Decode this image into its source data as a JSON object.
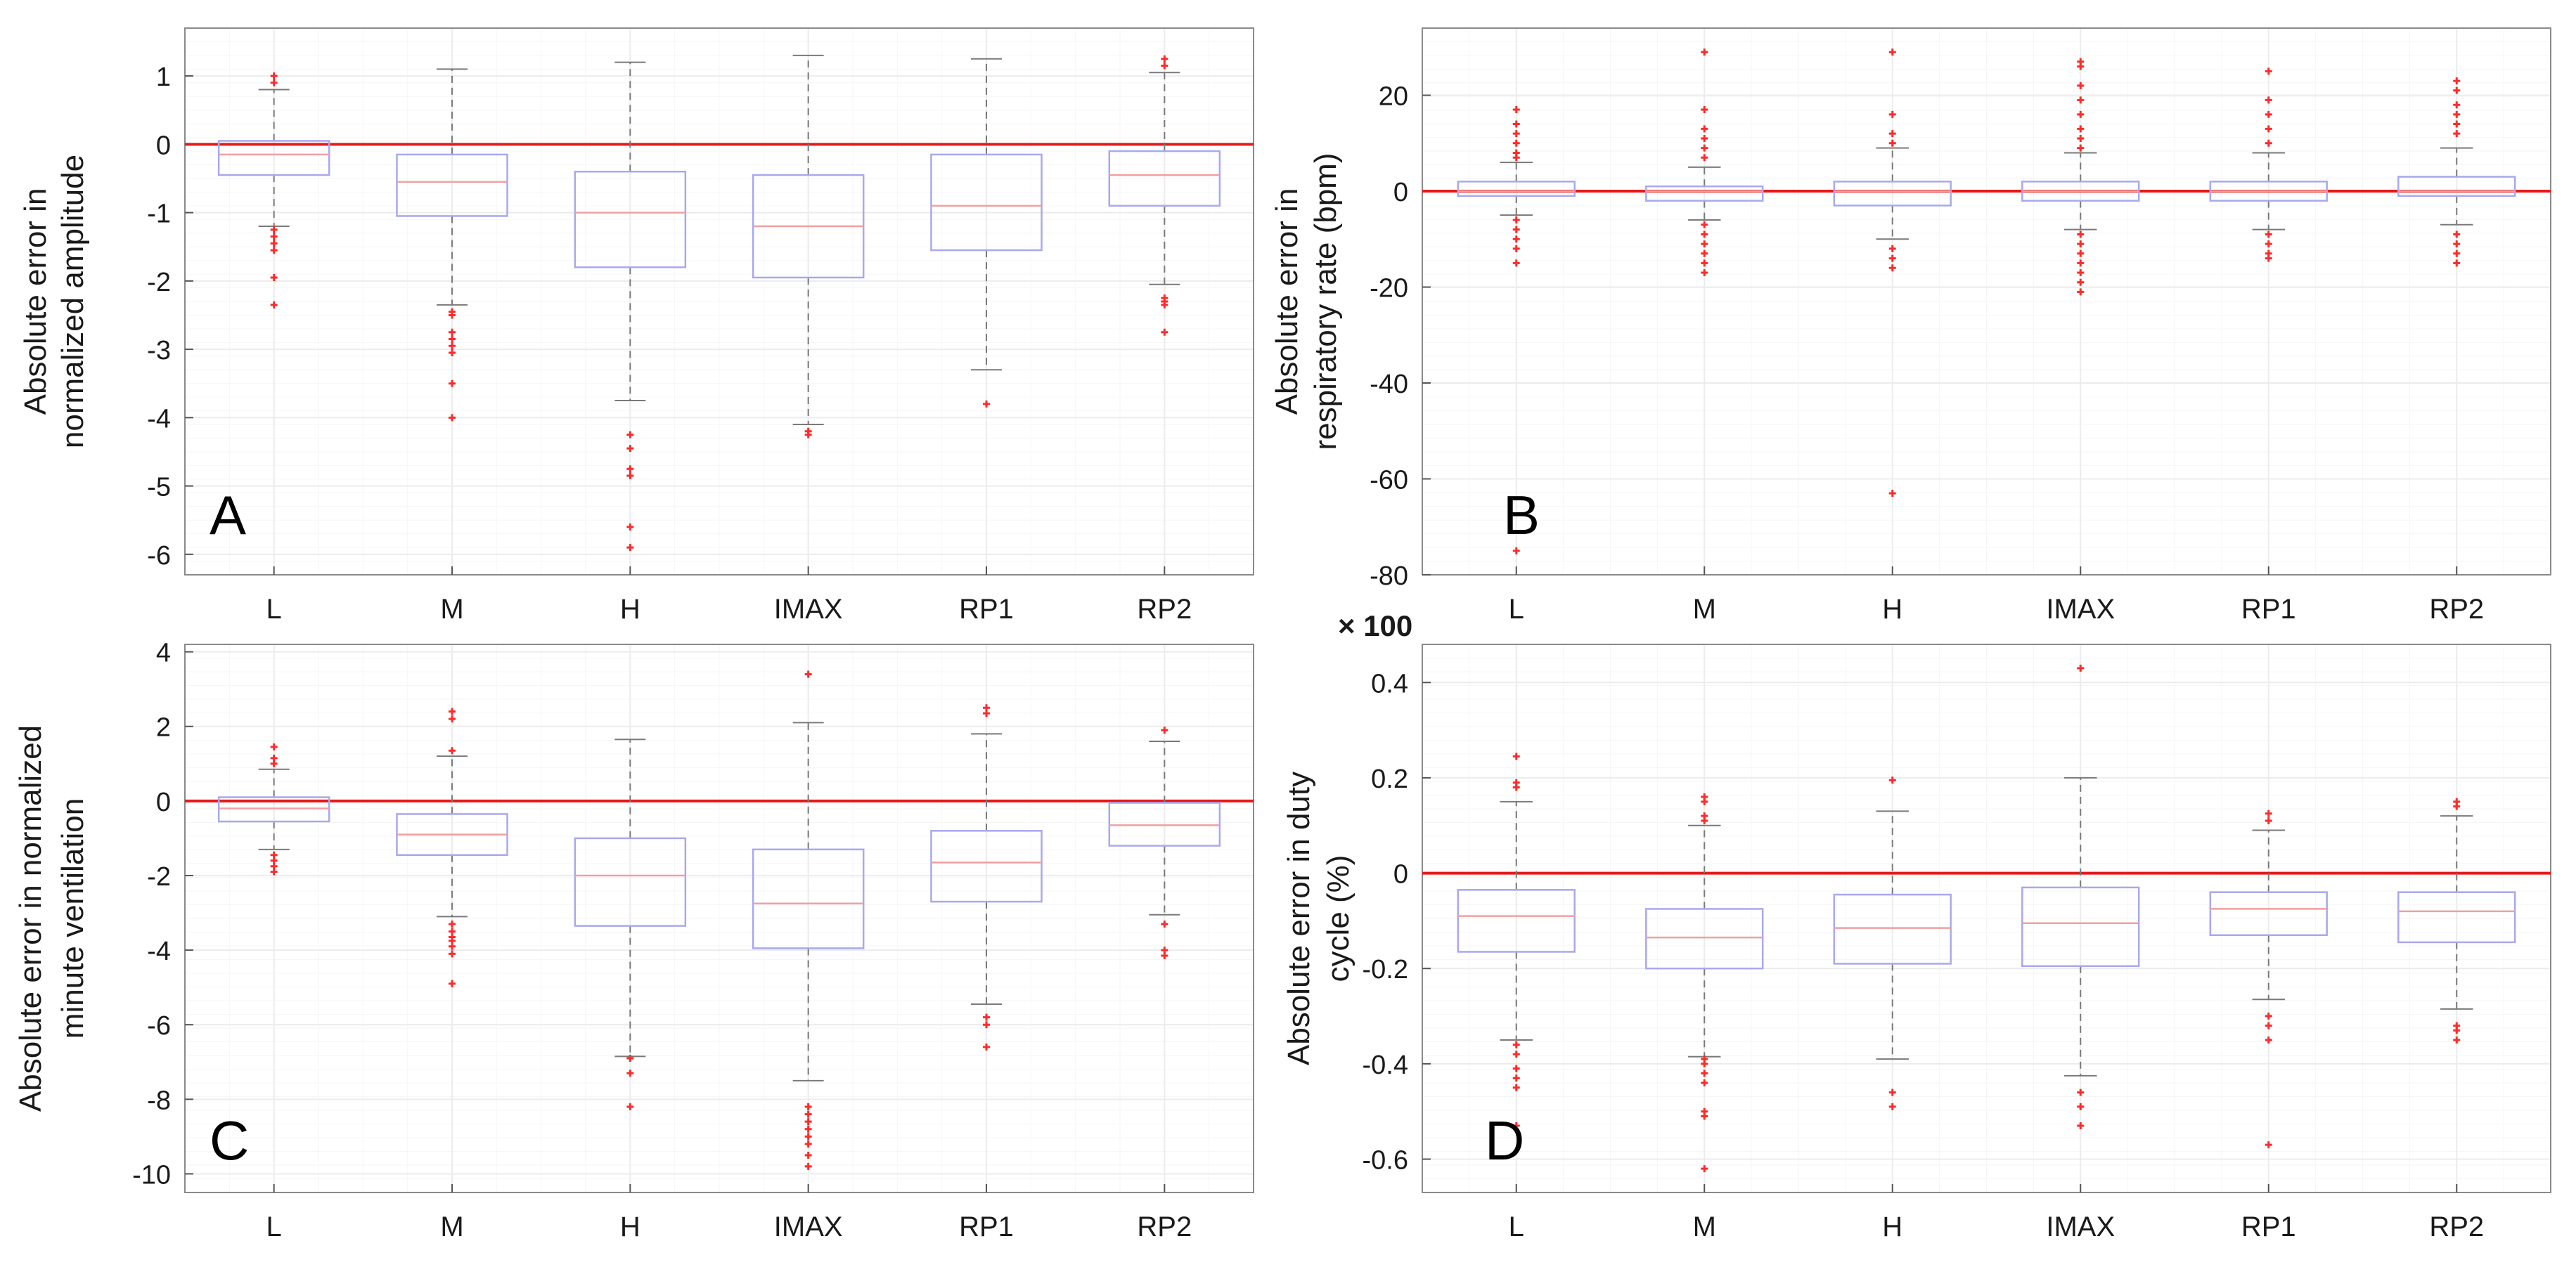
{
  "chart_data": [
    {
      "id": "A",
      "type": "box",
      "panel_label": "A",
      "title": "",
      "xlabel": "",
      "ylabel_lines": [
        "Absolute error in",
        "normalized amplitude"
      ],
      "exponent_label": "",
      "categories": [
        "L",
        "M",
        "H",
        "IMAX",
        "RP1",
        "RP2"
      ],
      "ylim": [
        -6.3,
        1.7
      ],
      "yticks": [
        1,
        0,
        -1,
        -2,
        -3,
        -4,
        -5,
        -6
      ],
      "ytick_labels": [
        "1",
        "0",
        "-1",
        "-2",
        "-3",
        "-4",
        "-5",
        "-6"
      ],
      "reference_line": 0,
      "boxes": [
        {
          "category": "L",
          "whisker_low": -1.2,
          "q1": -0.45,
          "median": -0.15,
          "q3": 0.05,
          "whisker_high": 0.8,
          "outliers": [
            1.0,
            0.9,
            -1.25,
            -1.35,
            -1.45,
            -1.55,
            -1.95,
            -2.35
          ]
        },
        {
          "category": "M",
          "whisker_low": -2.35,
          "q1": -1.05,
          "median": -0.55,
          "q3": -0.15,
          "whisker_high": 1.1,
          "outliers": [
            -2.45,
            -2.5,
            -2.75,
            -2.85,
            -2.95,
            -3.05,
            -3.5,
            -4.0
          ]
        },
        {
          "category": "H",
          "whisker_low": -3.75,
          "q1": -1.8,
          "median": -1.0,
          "q3": -0.4,
          "whisker_high": 1.2,
          "outliers": [
            -4.25,
            -4.45,
            -4.75,
            -4.85,
            -5.6,
            -5.9
          ]
        },
        {
          "category": "IMAX",
          "whisker_low": -4.1,
          "q1": -1.95,
          "median": -1.2,
          "q3": -0.45,
          "whisker_high": 1.3,
          "outliers": [
            -4.2,
            -4.25
          ]
        },
        {
          "category": "RP1",
          "whisker_low": -3.3,
          "q1": -1.55,
          "median": -0.9,
          "q3": -0.15,
          "whisker_high": 1.25,
          "outliers": [
            -3.8
          ]
        },
        {
          "category": "RP2",
          "whisker_low": -2.05,
          "q1": -0.9,
          "median": -0.45,
          "q3": -0.1,
          "whisker_high": 1.05,
          "outliers": [
            1.25,
            1.15,
            -2.25,
            -2.3,
            -2.35,
            -2.75
          ]
        }
      ]
    },
    {
      "id": "B",
      "type": "box",
      "panel_label": "B",
      "title": "",
      "xlabel": "",
      "ylabel_lines": [
        "Absolute error in",
        "respiratory rate (bpm)"
      ],
      "exponent_label": "",
      "categories": [
        "L",
        "M",
        "H",
        "IMAX",
        "RP1",
        "RP2"
      ],
      "ylim": [
        -80,
        34
      ],
      "yticks": [
        20,
        0,
        -20,
        -40,
        -60,
        -80
      ],
      "ytick_labels": [
        "20",
        "0",
        "-20",
        "-40",
        "-60",
        "-80"
      ],
      "reference_line": 0,
      "boxes": [
        {
          "category": "L",
          "whisker_low": -5,
          "q1": -1,
          "median": 0,
          "q3": 2,
          "whisker_high": 6,
          "outliers": [
            17,
            14,
            12,
            10,
            8,
            7,
            -6,
            -8,
            -10,
            -12,
            -15,
            -75
          ]
        },
        {
          "category": "M",
          "whisker_low": -6,
          "q1": -2,
          "median": 0,
          "q3": 1,
          "whisker_high": 5,
          "outliers": [
            29,
            17,
            13,
            11,
            9,
            7,
            -7,
            -9,
            -11,
            -13,
            -15,
            -17
          ]
        },
        {
          "category": "H",
          "whisker_low": -10,
          "q1": -3,
          "median": 0,
          "q3": 2,
          "whisker_high": 9,
          "outliers": [
            29,
            16,
            12,
            10,
            -12,
            -14,
            -16,
            -63
          ]
        },
        {
          "category": "IMAX",
          "whisker_low": -8,
          "q1": -2,
          "median": 0,
          "q3": 2,
          "whisker_high": 8,
          "outliers": [
            27,
            26,
            22,
            19,
            16,
            13,
            11,
            9,
            -9,
            -11,
            -13,
            -15,
            -17,
            -19,
            -21
          ]
        },
        {
          "category": "RP1",
          "whisker_low": -8,
          "q1": -2,
          "median": 0,
          "q3": 2,
          "whisker_high": 8,
          "outliers": [
            25,
            19,
            16,
            13,
            10,
            -9,
            -11,
            -13,
            -14
          ]
        },
        {
          "category": "RP2",
          "whisker_low": -7,
          "q1": -1,
          "median": 0,
          "q3": 3,
          "whisker_high": 9,
          "outliers": [
            23,
            21,
            18,
            16,
            14,
            12,
            -9,
            -11,
            -13,
            -15
          ]
        }
      ]
    },
    {
      "id": "C",
      "type": "box",
      "panel_label": "C",
      "title": "",
      "xlabel": "",
      "ylabel_lines": [
        "Absolute error in normalized",
        "minute ventilation"
      ],
      "exponent_label": "",
      "categories": [
        "L",
        "M",
        "H",
        "IMAX",
        "RP1",
        "RP2"
      ],
      "ylim": [
        -10.5,
        4.2
      ],
      "yticks": [
        4,
        2,
        0,
        -2,
        -4,
        -6,
        -8,
        -10
      ],
      "ytick_labels": [
        "4",
        "2",
        "0",
        "-2",
        "-4",
        "-6",
        "-8",
        "-10"
      ],
      "reference_line": 0,
      "boxes": [
        {
          "category": "L",
          "whisker_low": -1.3,
          "q1": -0.55,
          "median": -0.2,
          "q3": 0.1,
          "whisker_high": 0.85,
          "outliers": [
            1.45,
            1.15,
            1.0,
            -1.45,
            -1.6,
            -1.75,
            -1.9
          ]
        },
        {
          "category": "M",
          "whisker_low": -3.1,
          "q1": -1.45,
          "median": -0.9,
          "q3": -0.35,
          "whisker_high": 1.2,
          "outliers": [
            2.4,
            2.2,
            1.35,
            -3.3,
            -3.5,
            -3.65,
            -3.75,
            -3.9,
            -4.1,
            -4.9
          ]
        },
        {
          "category": "H",
          "whisker_low": -6.85,
          "q1": -3.35,
          "median": -2.0,
          "q3": -1.0,
          "whisker_high": 1.65,
          "outliers": [
            -6.9,
            -7.3,
            -8.2
          ]
        },
        {
          "category": "IMAX",
          "whisker_low": -7.5,
          "q1": -3.95,
          "median": -2.75,
          "q3": -1.3,
          "whisker_high": 2.1,
          "outliers": [
            3.4,
            -8.2,
            -8.4,
            -8.6,
            -8.8,
            -9.0,
            -9.2,
            -9.5,
            -9.8
          ]
        },
        {
          "category": "RP1",
          "whisker_low": -5.45,
          "q1": -2.7,
          "median": -1.65,
          "q3": -0.8,
          "whisker_high": 1.8,
          "outliers": [
            2.5,
            2.35,
            -5.8,
            -6.0,
            -6.6
          ]
        },
        {
          "category": "RP2",
          "whisker_low": -3.05,
          "q1": -1.2,
          "median": -0.65,
          "q3": -0.05,
          "whisker_high": 1.6,
          "outliers": [
            1.9,
            -3.3,
            -4.0,
            -4.15
          ]
        }
      ]
    },
    {
      "id": "D",
      "type": "box",
      "panel_label": "D",
      "title": "",
      "xlabel": "",
      "ylabel_lines": [
        "Absolute error in duty",
        "cycle (%)"
      ],
      "exponent_label": "× 100",
      "categories": [
        "L",
        "M",
        "H",
        "IMAX",
        "RP1",
        "RP2"
      ],
      "ylim": [
        -0.67,
        0.48
      ],
      "yticks": [
        0.4,
        0.2,
        0,
        -0.2,
        -0.4,
        -0.6
      ],
      "ytick_labels": [
        "0.4",
        "0.2",
        "0",
        "-0.2",
        "-0.4",
        "-0.6"
      ],
      "reference_line": 0,
      "boxes": [
        {
          "category": "L",
          "whisker_low": -0.35,
          "q1": -0.165,
          "median": -0.09,
          "q3": -0.035,
          "whisker_high": 0.15,
          "outliers": [
            0.245,
            0.19,
            0.18,
            -0.36,
            -0.38,
            -0.41,
            -0.43,
            -0.45,
            -0.53
          ]
        },
        {
          "category": "M",
          "whisker_low": -0.385,
          "q1": -0.2,
          "median": -0.135,
          "q3": -0.075,
          "whisker_high": 0.1,
          "outliers": [
            0.16,
            0.15,
            0.12,
            0.11,
            -0.39,
            -0.4,
            -0.42,
            -0.44,
            -0.5,
            -0.51,
            -0.62
          ]
        },
        {
          "category": "H",
          "whisker_low": -0.39,
          "q1": -0.19,
          "median": -0.115,
          "q3": -0.045,
          "whisker_high": 0.13,
          "outliers": [
            0.195,
            -0.46,
            -0.49
          ]
        },
        {
          "category": "IMAX",
          "whisker_low": -0.425,
          "q1": -0.195,
          "median": -0.105,
          "q3": -0.03,
          "whisker_high": 0.2,
          "outliers": [
            0.43,
            -0.46,
            -0.49,
            -0.53
          ]
        },
        {
          "category": "RP1",
          "whisker_low": -0.265,
          "q1": -0.13,
          "median": -0.075,
          "q3": -0.04,
          "whisker_high": 0.09,
          "outliers": [
            0.125,
            0.11,
            -0.3,
            -0.32,
            -0.35,
            -0.57
          ]
        },
        {
          "category": "RP2",
          "whisker_low": -0.285,
          "q1": -0.145,
          "median": -0.08,
          "q3": -0.04,
          "whisker_high": 0.12,
          "outliers": [
            0.15,
            0.14,
            -0.32,
            -0.33,
            -0.35
          ]
        }
      ]
    }
  ],
  "colors": {
    "box_edge": "#a8a8f0",
    "median": "#f0a0a0",
    "whisker": "#7a7a7a",
    "outlier": "#ff2a2a",
    "reference_line": "#e81818",
    "grid": "#ececec",
    "axes": "#555555",
    "text": "#1a1a1a"
  }
}
